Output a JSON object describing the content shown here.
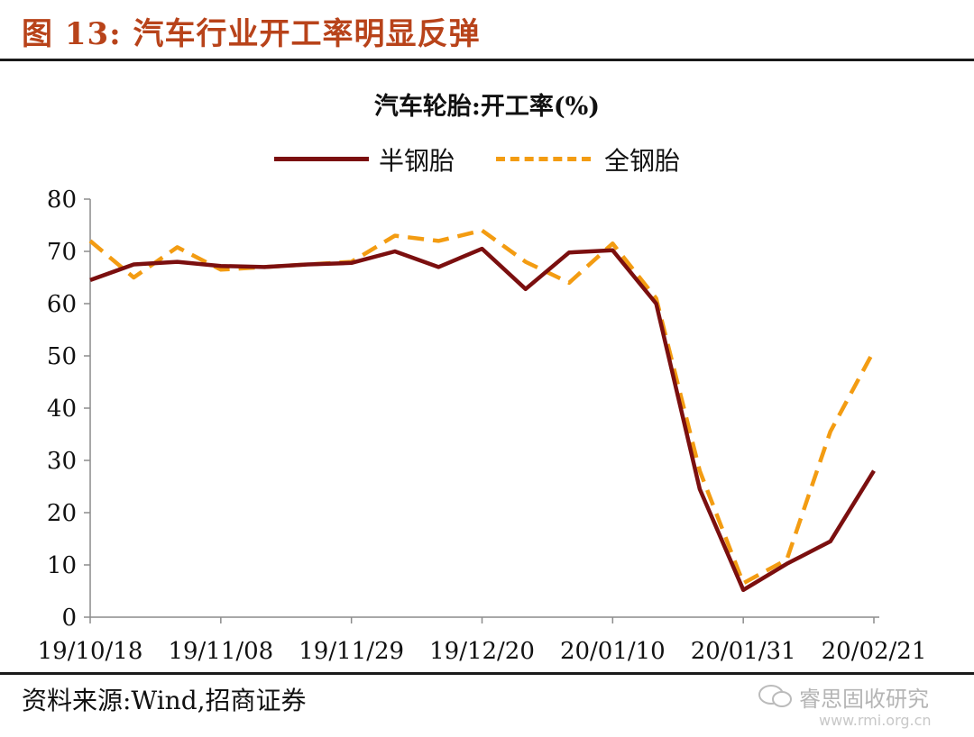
{
  "header": {
    "title": "图 13:  汽车行业开工率明显反弹"
  },
  "footer": {
    "source": "资料来源:Wind,招商证券"
  },
  "watermark": {
    "name": "睿思固收研究",
    "site": "www.rmi.org.cn"
  },
  "chart_data": {
    "type": "line",
    "title": "汽车轮胎:开工率(%)",
    "legend": "top",
    "ylim": [
      0,
      80
    ],
    "y_ticks": [
      0,
      10,
      20,
      30,
      40,
      50,
      60,
      70,
      80
    ],
    "x_ticks": [
      "19/10/18",
      "19/11/08",
      "19/11/29",
      "19/12/20",
      "20/01/10",
      "20/01/31",
      "20/02/21"
    ],
    "x": [
      "19/10/18",
      "19/10/25",
      "19/11/01",
      "19/11/08",
      "19/11/15",
      "19/11/22",
      "19/11/29",
      "19/12/06",
      "19/12/13",
      "19/12/20",
      "19/12/27",
      "20/01/03",
      "20/01/10",
      "20/01/17",
      "20/01/24",
      "20/01/31",
      "20/02/07",
      "20/02/14",
      "20/02/21"
    ],
    "series": [
      {
        "name": "半钢胎",
        "color": "#7b0f0f",
        "dash": "solid",
        "values": [
          64.5,
          67.5,
          68.0,
          67.2,
          67.0,
          67.5,
          67.8,
          70.0,
          67.0,
          70.5,
          62.8,
          69.8,
          70.2,
          60.0,
          24.5,
          5.2,
          10.2,
          14.5,
          28.0
        ]
      },
      {
        "name": "全钢胎",
        "color": "#f39c12",
        "dash": "dashed",
        "values": [
          72.0,
          65.0,
          70.8,
          66.5,
          67.0,
          67.5,
          68.0,
          73.0,
          72.0,
          74.0,
          68.0,
          64.0,
          71.5,
          61.0,
          28.0,
          6.5,
          11.0,
          35.5,
          51.0
        ]
      }
    ]
  }
}
